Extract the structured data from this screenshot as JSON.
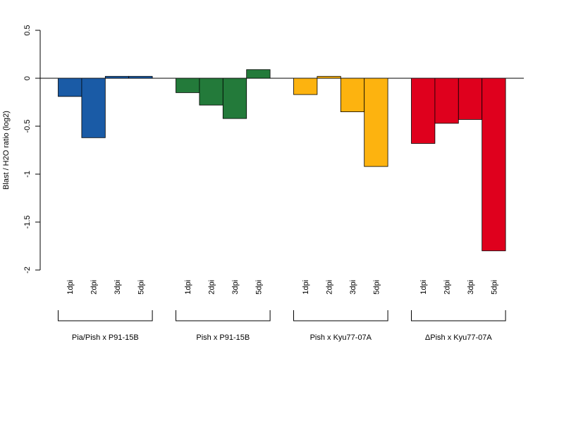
{
  "chart_data": {
    "type": "bar",
    "ylabel": "Blast / H2O ratio (log2)",
    "ylim": [
      -2,
      0.5
    ],
    "y_ticks": [
      "0.5",
      "0",
      "-0.5",
      "-1",
      "-1.5",
      "-2"
    ],
    "baseline": 0,
    "grid": false,
    "groups": [
      {
        "name": "Pia/Pish x P91-15B",
        "color": "#1a5ba6",
        "categories": [
          "1dpi",
          "2dpi",
          "3dpi",
          "5dpi"
        ],
        "values": [
          -0.19,
          -0.62,
          0.02,
          0.02
        ]
      },
      {
        "name": "Pish x P91-15B",
        "color": "#237a3a",
        "categories": [
          "1dpi",
          "2dpi",
          "3dpi",
          "5dpi"
        ],
        "values": [
          -0.15,
          -0.28,
          -0.42,
          0.09
        ]
      },
      {
        "name": "Pish x Kyu77-07A",
        "color": "#fdb30f",
        "categories": [
          "1dpi",
          "2dpi",
          "3dpi",
          "5dpi"
        ],
        "values": [
          -0.17,
          0.02,
          -0.35,
          -0.92
        ]
      },
      {
        "name": "ΔPish x Kyu77-07A",
        "color": "#df001d",
        "categories": [
          "1dpi",
          "2dpi",
          "3dpi",
          "5dpi"
        ],
        "values": [
          -0.68,
          -0.47,
          -0.43,
          -1.8
        ]
      }
    ]
  }
}
